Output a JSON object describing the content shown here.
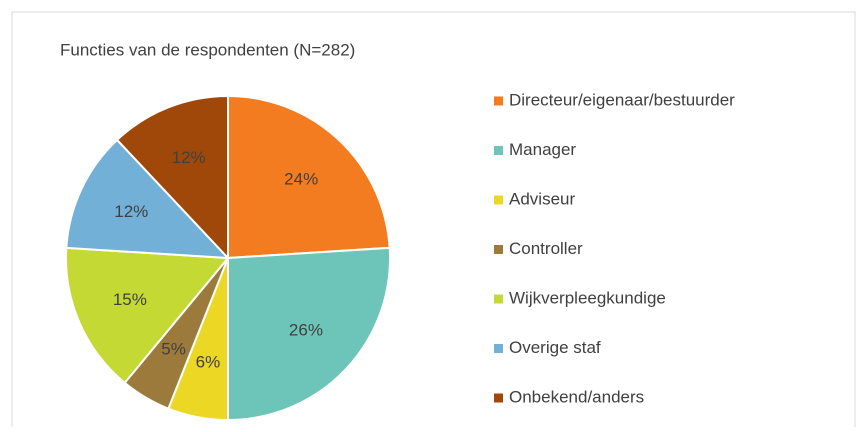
{
  "chart_data": {
    "type": "pie",
    "title": "Functies van de respondenten (N=282)",
    "categories": [
      "Directeur/eigenaar/bestuurder",
      "Manager",
      "Adviseur",
      "Controller",
      "Wijkverpleegkundige",
      "Overige staf",
      "Onbekend/anders"
    ],
    "values": [
      24,
      26,
      6,
      5,
      15,
      12,
      12
    ],
    "value_labels": [
      "24%",
      "26%",
      "6%",
      "5%",
      "15%",
      "12%",
      "12%"
    ],
    "colors": [
      "#f47c20",
      "#6cc5b8",
      "#ecd725",
      "#9c7a3c",
      "#c5d935",
      "#72b0d8",
      "#a0480a"
    ],
    "legend": "right"
  }
}
